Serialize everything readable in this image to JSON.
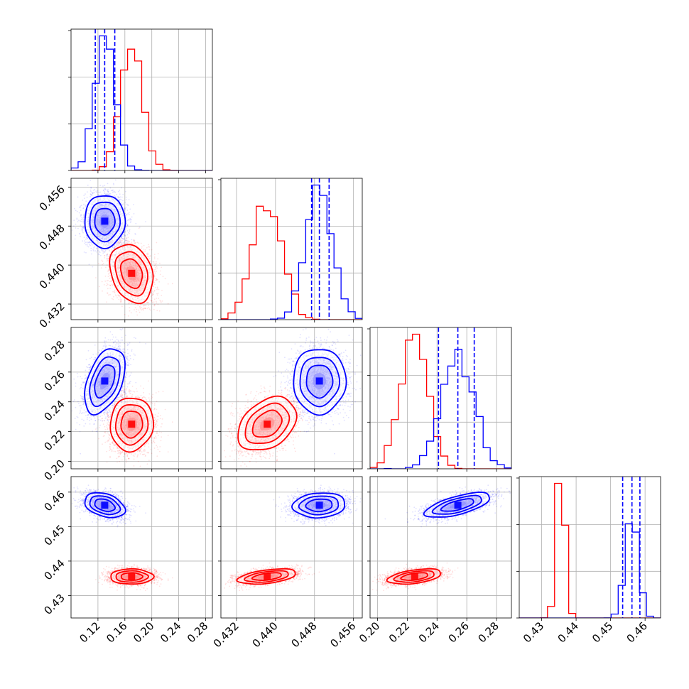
{
  "colors": {
    "red": "#ff0000",
    "blue": "#0000ff",
    "grid": "#b0b0b0"
  },
  "chart_data": {
    "type": "corner",
    "grid": true,
    "parameters": [
      {
        "range": [
          0.08,
          0.29
        ],
        "ticks": [
          "0.12",
          "0.16",
          "0.20",
          "0.24",
          "0.28"
        ]
      },
      {
        "range": [
          0.4288,
          0.4578
        ],
        "ticks": [
          "0.432",
          "0.440",
          "0.448",
          "0.456"
        ]
      },
      {
        "range": [
          0.195,
          0.29
        ],
        "ticks": [
          "0.20",
          "0.22",
          "0.24",
          "0.26",
          "0.28"
        ]
      },
      {
        "range": [
          0.4235,
          0.4645
        ],
        "ticks": [
          "0.43",
          "0.44",
          "0.45",
          "0.46"
        ]
      }
    ],
    "series": [
      {
        "color": "#ff0000",
        "means": [
          0.17,
          0.4383,
          0.225,
          0.4355
        ],
        "sigmas": [
          0.016,
          0.003,
          0.009,
          0.0011
        ],
        "correlations": [
          [
            1,
            -0.25,
            0.05,
            0
          ],
          [
            -0.25,
            1,
            0.35,
            0.45
          ],
          [
            0.05,
            0.35,
            1,
            0.45
          ],
          [
            0,
            0.45,
            0.45,
            1
          ]
        ]
      },
      {
        "color": "#0000ff",
        "means": [
          0.13,
          0.449,
          0.254,
          0.4562
        ],
        "sigmas": [
          0.015,
          0.0027,
          0.011,
          0.0018
        ],
        "correlations": [
          [
            1,
            0,
            0.45,
            -0.35
          ],
          [
            0,
            1,
            0,
            0.1
          ],
          [
            0.45,
            0,
            1,
            0.65
          ],
          [
            -0.35,
            0.1,
            0.65,
            1
          ]
        ]
      }
    ],
    "quantile_lines": {
      "color": "#0000ff",
      "values": [
        [
          0.116,
          0.13,
          0.145
        ],
        [
          0.4474,
          0.449,
          0.451
        ],
        [
          0.241,
          0.254,
          0.265
        ],
        [
          0.4535,
          0.4562,
          0.4585
        ]
      ]
    }
  }
}
